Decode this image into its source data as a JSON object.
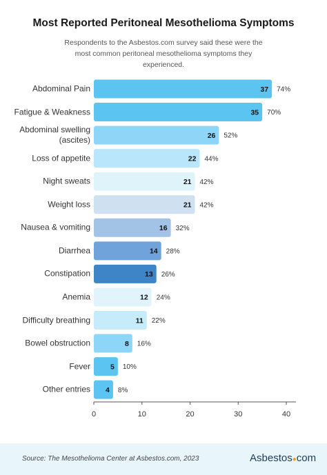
{
  "chart_data": {
    "type": "hbar",
    "title": "Most Reported Peritoneal Mesothelioma Symptoms",
    "subtitle": "Respondents to the Asbestos.com survey said these were the most common peritoneal mesothelioma symptoms they experienced.",
    "categories": [
      "Abdominal Pain",
      "Fatigue & Weakness",
      "Abdominal swelling (ascites)",
      "Loss of appetite",
      "Night sweats",
      "Weight loss",
      "Nausea & vomiting",
      "Diarrhea",
      "Constipation",
      "Anemia",
      "Difficulty breathing",
      "Bowel obstruction",
      "Fever",
      "Other entries"
    ],
    "values": [
      37,
      35,
      26,
      22,
      21,
      21,
      16,
      14,
      13,
      12,
      11,
      8,
      5,
      4
    ],
    "percent_labels": [
      "74%",
      "70%",
      "52%",
      "44%",
      "42%",
      "42%",
      "32%",
      "28%",
      "26%",
      "24%",
      "22%",
      "16%",
      "10%",
      "8%"
    ],
    "colors": [
      "#5bc4f1",
      "#5bc4f1",
      "#8ed6f7",
      "#b9e6fa",
      "#dff3fb",
      "#cfe0f0",
      "#a3c3e6",
      "#6fa3da",
      "#3d85c6",
      "#e1f4fb",
      "#c6ebfa",
      "#8ed6f7",
      "#5bc4f1",
      "#5bc4f1"
    ],
    "xlim": [
      0,
      42
    ],
    "xticks": [
      0,
      10,
      20,
      30,
      40
    ]
  },
  "footer": {
    "source": "Source: The Mesothelioma Center at Asbestos.com, 2023",
    "logo_name": "Asbestos",
    "logo_suffix": "com"
  }
}
